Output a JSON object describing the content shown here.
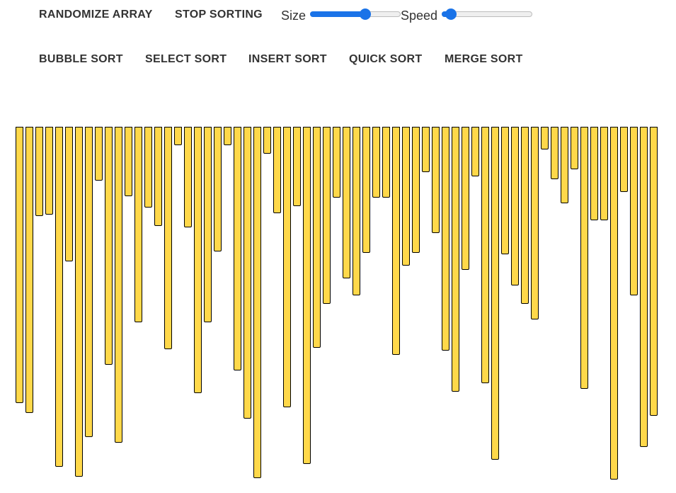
{
  "toolbar": {
    "randomize_label": "RANDOMIZE ARRAY",
    "stop_label": "STOP SORTING",
    "size_label": "Size",
    "speed_label": "Speed",
    "size_value": 0.61,
    "speed_value": 0.1
  },
  "algorithms": {
    "bubble_label": "BUBBLE SORT",
    "select_label": "SELECT SORT",
    "insert_label": "INSERT SORT",
    "quick_label": "QUICK SORT",
    "merge_label": "MERGE SORT"
  },
  "colors": {
    "bar_fill": "#ffd84a",
    "bar_border": "#000000",
    "slider_accent": "#1a73e8",
    "button_text": "#333333"
  },
  "array": {
    "values": [
      390,
      404,
      126,
      124,
      480,
      190,
      494,
      438,
      76,
      336,
      446,
      98,
      276,
      114,
      140,
      314,
      26,
      142,
      376,
      276,
      176,
      26,
      344,
      412,
      496,
      38,
      122,
      396,
      112,
      476,
      312,
      250,
      100,
      214,
      238,
      178,
      100,
      100,
      322,
      196,
      178,
      64,
      150,
      316,
      374,
      202,
      70,
      362,
      470,
      180,
      224,
      250,
      272,
      32,
      74,
      108,
      60,
      370,
      132,
      132,
      498,
      92,
      238,
      452,
      408
    ]
  }
}
